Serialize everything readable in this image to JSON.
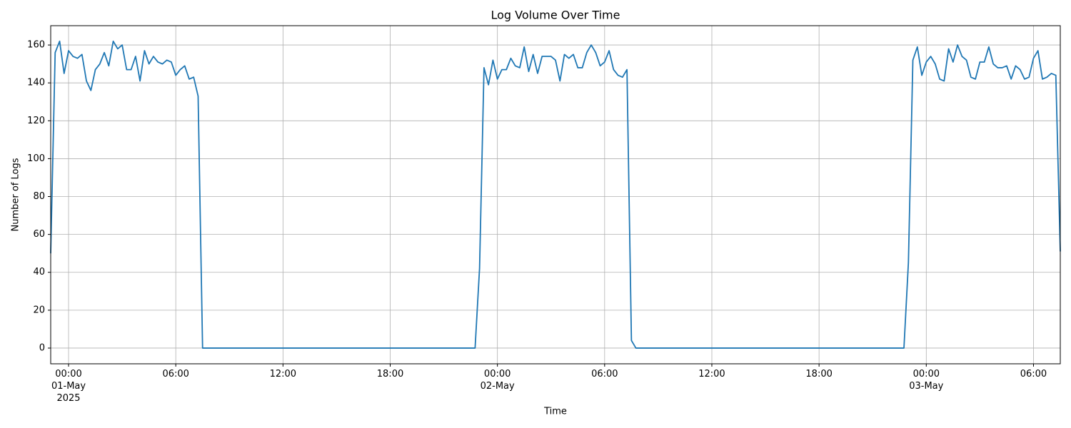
{
  "chart_data": {
    "type": "line",
    "title": "Log Volume Over Time",
    "x_label": "Time",
    "y_label": "Number of Logs",
    "color": "#1f77b4",
    "grid": true,
    "x": [
      "2025-04-30 23:00",
      "2025-04-30 23:15",
      "2025-04-30 23:30",
      "2025-04-30 23:45",
      "2025-05-01 00:00",
      "2025-05-01 00:15",
      "2025-05-01 00:30",
      "2025-05-01 00:45",
      "2025-05-01 01:00",
      "2025-05-01 01:15",
      "2025-05-01 01:30",
      "2025-05-01 01:45",
      "2025-05-01 02:00",
      "2025-05-01 02:15",
      "2025-05-01 02:30",
      "2025-05-01 02:45",
      "2025-05-01 03:00",
      "2025-05-01 03:15",
      "2025-05-01 03:30",
      "2025-05-01 03:45",
      "2025-05-01 04:00",
      "2025-05-01 04:15",
      "2025-05-01 04:30",
      "2025-05-01 04:45",
      "2025-05-01 05:00",
      "2025-05-01 05:15",
      "2025-05-01 05:30",
      "2025-05-01 05:45",
      "2025-05-01 06:00",
      "2025-05-01 06:15",
      "2025-05-01 06:30",
      "2025-05-01 06:45",
      "2025-05-01 07:00",
      "2025-05-01 07:15",
      "2025-05-01 07:30",
      "2025-05-01 22:45",
      "2025-05-01 23:00",
      "2025-05-01 23:15",
      "2025-05-01 23:30",
      "2025-05-01 23:45",
      "2025-05-02 00:00",
      "2025-05-02 00:15",
      "2025-05-02 00:30",
      "2025-05-02 00:45",
      "2025-05-02 01:00",
      "2025-05-02 01:15",
      "2025-05-02 01:30",
      "2025-05-02 01:45",
      "2025-05-02 02:00",
      "2025-05-02 02:15",
      "2025-05-02 02:30",
      "2025-05-02 02:45",
      "2025-05-02 03:00",
      "2025-05-02 03:15",
      "2025-05-02 03:30",
      "2025-05-02 03:45",
      "2025-05-02 04:00",
      "2025-05-02 04:15",
      "2025-05-02 04:30",
      "2025-05-02 04:45",
      "2025-05-02 05:00",
      "2025-05-02 05:15",
      "2025-05-02 05:30",
      "2025-05-02 05:45",
      "2025-05-02 06:00",
      "2025-05-02 06:15",
      "2025-05-02 06:30",
      "2025-05-02 06:45",
      "2025-05-02 07:00",
      "2025-05-02 07:15",
      "2025-05-02 07:30",
      "2025-05-02 07:45",
      "2025-05-02 22:45",
      "2025-05-02 23:00",
      "2025-05-02 23:15",
      "2025-05-02 23:30",
      "2025-05-02 23:45",
      "2025-05-03 00:00",
      "2025-05-03 00:15",
      "2025-05-03 00:30",
      "2025-05-03 00:45",
      "2025-05-03 01:00",
      "2025-05-03 01:15",
      "2025-05-03 01:30",
      "2025-05-03 01:45",
      "2025-05-03 02:00",
      "2025-05-03 02:15",
      "2025-05-03 02:30",
      "2025-05-03 02:45",
      "2025-05-03 03:00",
      "2025-05-03 03:15",
      "2025-05-03 03:30",
      "2025-05-03 03:45",
      "2025-05-03 04:00",
      "2025-05-03 04:15",
      "2025-05-03 04:30",
      "2025-05-03 04:45",
      "2025-05-03 05:00",
      "2025-05-03 05:15",
      "2025-05-03 05:30",
      "2025-05-03 05:45",
      "2025-05-03 06:00",
      "2025-05-03 06:15",
      "2025-05-03 06:30",
      "2025-05-03 06:45",
      "2025-05-03 07:00",
      "2025-05-03 07:15",
      "2025-05-03 07:30"
    ],
    "values": [
      50,
      156,
      162,
      145,
      157,
      154,
      153,
      155,
      141,
      136,
      147,
      150,
      156,
      149,
      162,
      158,
      160,
      147,
      147,
      154,
      141,
      157,
      150,
      154,
      151,
      150,
      152,
      151,
      144,
      147,
      149,
      142,
      143,
      133,
      0,
      0,
      42,
      148,
      139,
      152,
      142,
      147,
      147,
      153,
      149,
      148,
      159,
      146,
      155,
      145,
      154,
      154,
      154,
      152,
      141,
      155,
      153,
      155,
      148,
      148,
      156,
      160,
      156,
      149,
      151,
      157,
      147,
      144,
      143,
      147,
      4,
      0,
      0,
      45,
      152,
      159,
      144,
      151,
      154,
      150,
      142,
      141,
      158,
      151,
      160,
      154,
      152,
      143,
      142,
      151,
      151,
      159,
      150,
      148,
      148,
      149,
      142,
      149,
      147,
      142,
      143,
      153,
      157,
      142,
      143,
      145,
      144,
      51
    ],
    "xlim": [
      "2025-04-30 23:00",
      "2025-05-03 07:30"
    ],
    "xticks": [
      {
        "value": "2025-05-01 00:00",
        "label": "00:00\n01-May\n2025"
      },
      {
        "value": "2025-05-01 06:00",
        "label": "06:00"
      },
      {
        "value": "2025-05-01 12:00",
        "label": "12:00"
      },
      {
        "value": "2025-05-01 18:00",
        "label": "18:00"
      },
      {
        "value": "2025-05-02 00:00",
        "label": "00:00\n02-May"
      },
      {
        "value": "2025-05-02 06:00",
        "label": "06:00"
      },
      {
        "value": "2025-05-02 12:00",
        "label": "12:00"
      },
      {
        "value": "2025-05-02 18:00",
        "label": "18:00"
      },
      {
        "value": "2025-05-03 00:00",
        "label": "00:00\n03-May"
      },
      {
        "value": "2025-05-03 06:00",
        "label": "06:00"
      }
    ],
    "ylim": [
      -8.3,
      170.2
    ],
    "yticks": [
      0,
      20,
      40,
      60,
      80,
      100,
      120,
      140,
      160
    ]
  }
}
